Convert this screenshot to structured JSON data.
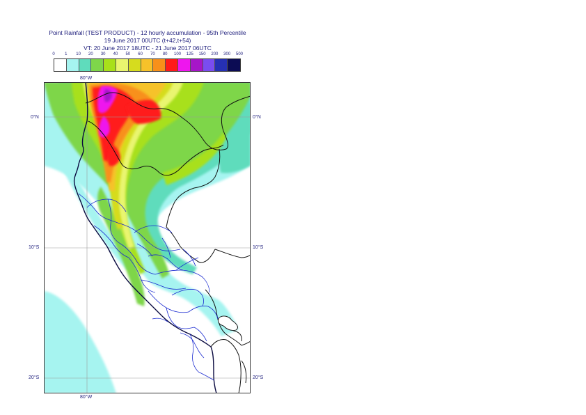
{
  "title": {
    "line1": "Point Rainfall (TEST PRODUCT) - 12 hourly accumulation - 95th Percentile",
    "line2": "19 June 2017 00UTC (t+42,t+54)",
    "line3": "VT: 20 June 2017 18UTC - 21 June 2017 06UTC"
  },
  "legend": {
    "ticks": [
      "0",
      "1",
      "10",
      "20",
      "30",
      "40",
      "50",
      "60",
      "70",
      "80",
      "100",
      "125",
      "150",
      "200",
      "300",
      "500"
    ],
    "colors": [
      "#ffffff",
      "#a6f4f0",
      "#5fdcbc",
      "#7ed64a",
      "#a8e01a",
      "#e9f56f",
      "#d6dc1e",
      "#f6c22a",
      "#f8901a",
      "#ff1a1a",
      "#ee16ee",
      "#a616c8",
      "#7a4cf0",
      "#2630b4",
      "#0c0c54"
    ]
  },
  "axes": {
    "top_lon": "80°W",
    "bottom_lon": "80°W",
    "lat_0_left": "0°N",
    "lat_0_right": "0°N",
    "lat_10_left": "10°S",
    "lat_10_right": "10°S",
    "lat_20_left": "20°S",
    "lat_20_right": "20°S"
  },
  "colors": {
    "grid": "#9a9a9a",
    "frame": "#333333",
    "coast": "#0a0a40",
    "borders": "#111111",
    "regions": "#1a2ad0"
  }
}
